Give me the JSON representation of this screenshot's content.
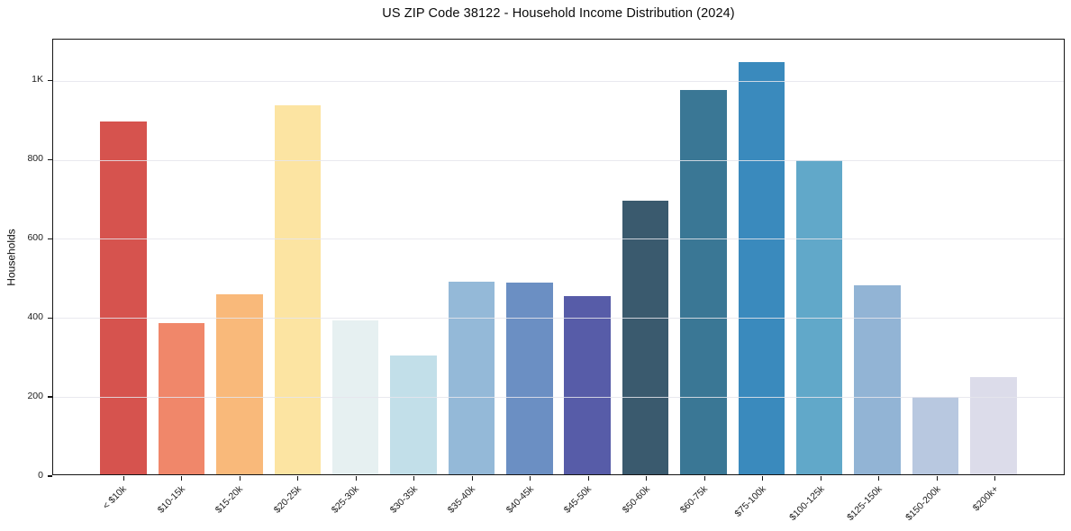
{
  "chart_data": {
    "type": "bar",
    "title": "US ZIP Code 38122 - Household Income Distribution (2024)",
    "xlabel": "",
    "ylabel": "Households",
    "categories": [
      "< $10k",
      "$10-15k",
      "$15-20k",
      "$20-25k",
      "$25-30k",
      "$30-35k",
      "$35-40k",
      "$40-45k",
      "$45-50k",
      "$50-60k",
      "$60-75k",
      "$75-100k",
      "$100-125k",
      "$125-150k",
      "$150-200k",
      "$200k+"
    ],
    "values": [
      897,
      385,
      458,
      938,
      392,
      301,
      490,
      487,
      453,
      695,
      977,
      1048,
      797,
      481,
      197,
      248
    ],
    "bar_colors": [
      "#d6534e",
      "#f0876a",
      "#f9b97a",
      "#fce4a2",
      "#e6f0f1",
      "#c2dfe9",
      "#94b9d8",
      "#6b8fc3",
      "#575ca8",
      "#3a5a6e",
      "#3a7795",
      "#3a8abd",
      "#61a8c9",
      "#92b4d5",
      "#b8c8e0",
      "#dcdcea"
    ],
    "ylim": [
      0,
      1104
    ],
    "yticks": [
      {
        "value": 0,
        "label": "0"
      },
      {
        "value": 200,
        "label": "200"
      },
      {
        "value": 400,
        "label": "400"
      },
      {
        "value": 600,
        "label": "600"
      },
      {
        "value": 800,
        "label": "800"
      },
      {
        "value": 1000,
        "label": "1K"
      }
    ],
    "grid": "horizontal",
    "legend": "none",
    "colors": {
      "background": "#ffffff",
      "spine": "#151515",
      "gridline": "#e5e5ec",
      "tick_text": "#1c1c1c",
      "title_text": "#0a0a0a"
    }
  }
}
